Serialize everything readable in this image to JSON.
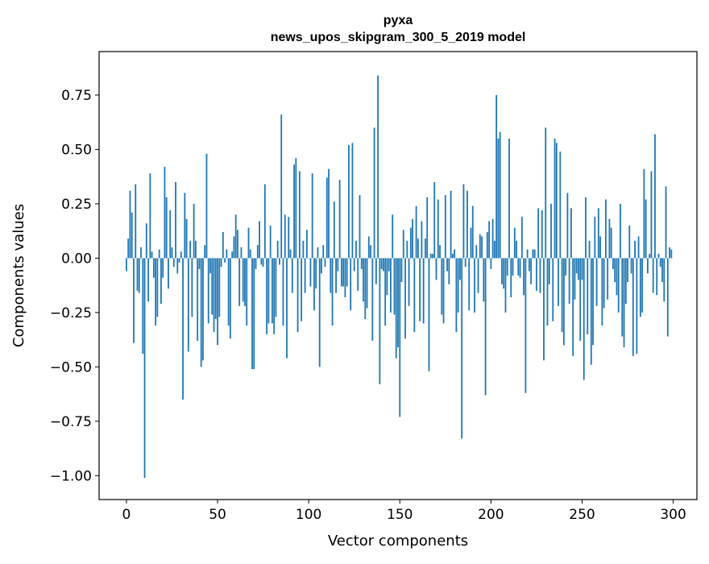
{
  "chart_data": {
    "type": "bar",
    "title": "pyxa",
    "subtitle": "news_upos_skipgram_300_5_2019 model",
    "xlabel": "Vector components",
    "ylabel": "Components values",
    "xlim": [
      -15,
      313
    ],
    "ylim": [
      -1.11,
      0.95
    ],
    "xticks": [
      0,
      50,
      100,
      150,
      200,
      250,
      300
    ],
    "xtick_labels": [
      "0",
      "50",
      "100",
      "150",
      "200",
      "250",
      "300"
    ],
    "yticks": [
      -1.0,
      -0.75,
      -0.5,
      -0.25,
      0.0,
      0.25,
      0.5,
      0.75
    ],
    "ytick_labels": [
      "−1.00",
      "−0.75",
      "−0.50",
      "−0.25",
      "0.00",
      "0.25",
      "0.50",
      "0.75"
    ],
    "grid": false,
    "color": "#1f77b4",
    "x_start": 0,
    "values": [
      -0.06,
      0.09,
      0.31,
      0.21,
      -0.39,
      0.34,
      -0.15,
      -0.16,
      0.05,
      -0.44,
      -1.01,
      0.16,
      -0.2,
      0.39,
      0.03,
      -0.09,
      -0.31,
      -0.27,
      0.04,
      -0.21,
      -0.09,
      0.42,
      0.28,
      -0.14,
      0.22,
      0.05,
      -0.04,
      0.35,
      -0.07,
      -0.02,
      0.03,
      -0.65,
      0.3,
      0.18,
      -0.43,
      0.08,
      -0.27,
      0.25,
      0.08,
      -0.38,
      -0.05,
      -0.5,
      -0.47,
      0.06,
      0.48,
      -0.3,
      -0.07,
      -0.26,
      -0.34,
      -0.28,
      -0.4,
      -0.27,
      -0.04,
      0.12,
      -0.02,
      0.04,
      -0.31,
      -0.37,
      0.03,
      0.1,
      0.2,
      0.13,
      -0.22,
      0.05,
      -0.2,
      -0.22,
      -0.31,
      0.14,
      0.04,
      -0.51,
      -0.51,
      -0.05,
      0.06,
      0.17,
      -0.03,
      -0.04,
      0.34,
      -0.35,
      -0.3,
      0.15,
      -0.3,
      -0.35,
      -0.27,
      0.08,
      -0.03,
      0.66,
      -0.31,
      0.2,
      -0.46,
      0.19,
      0.04,
      -0.16,
      0.43,
      0.46,
      -0.34,
      0.4,
      -0.29,
      0.08,
      -0.16,
      0.13,
      0.0,
      -0.13,
      0.39,
      -0.24,
      -0.14,
      0.05,
      -0.5,
      -0.07,
      0.06,
      -0.04,
      0.37,
      0.41,
      -0.16,
      -0.31,
      0.26,
      -0.16,
      -0.06,
      0.36,
      -0.13,
      -0.13,
      -0.18,
      -0.13,
      0.52,
      -0.24,
      0.53,
      -0.06,
      0.08,
      -0.15,
      0.29,
      -0.05,
      -0.2,
      -0.28,
      -0.23,
      0.1,
      0.06,
      -0.38,
      0.6,
      -0.12,
      0.84,
      -0.58,
      -0.05,
      -0.06,
      -0.31,
      -0.17,
      -0.06,
      -0.25,
      0.2,
      -0.26,
      -0.46,
      -0.41,
      -0.73,
      -0.11,
      0.13,
      -0.37,
      0.08,
      -0.22,
      0.14,
      0.18,
      -0.34,
      0.24,
      0.09,
      -0.29,
      0.17,
      -0.3,
      0.09,
      0.28,
      -0.52,
      0.02,
      0.02,
      0.35,
      -0.1,
      0.27,
      0.06,
      -0.26,
      -0.3,
      0.29,
      -0.06,
      -0.12,
      0.31,
      0.02,
      0.04,
      -0.34,
      -0.25,
      -0.1,
      -0.83,
      0.34,
      -0.04,
      0.31,
      -0.24,
      0.14,
      0.24,
      -0.25,
      0.06,
      -0.16,
      0.11,
      0.1,
      -0.2,
      -0.63,
      0.12,
      0.17,
      -0.05,
      0.18,
      0.08,
      0.75,
      0.55,
      0.58,
      -0.12,
      -0.14,
      -0.25,
      -0.08,
      0.55,
      -0.18,
      -0.08,
      0.14,
      0.08,
      -0.08,
      -0.09,
      0.19,
      -0.17,
      -0.62,
      0.04,
      -0.06,
      -0.12,
      0.04,
      0.04,
      -0.15,
      0.23,
      -0.16,
      0.22,
      -0.47,
      0.6,
      -0.31,
      -0.12,
      0.25,
      -0.29,
      0.55,
      0.53,
      -0.22,
      0.49,
      -0.34,
      -0.4,
      -0.08,
      0.3,
      -0.21,
      0.23,
      -0.45,
      -0.19,
      -0.07,
      -0.1,
      -0.38,
      -0.1,
      -0.56,
      0.28,
      -0.35,
      0.08,
      -0.49,
      -0.4,
      0.19,
      -0.22,
      0.23,
      0.1,
      -0.31,
      -0.23,
      0.27,
      -0.19,
      0.18,
      0.14,
      -0.05,
      -0.11,
      -0.17,
      -0.25,
      0.25,
      -0.36,
      -0.41,
      -0.21,
      -0.11,
      0.15,
      -0.07,
      -0.45,
      0.08,
      -0.44,
      0.1,
      -0.27,
      -0.25,
      0.41,
      0.27,
      -0.07,
      0.02,
      0.4,
      -0.16,
      0.57,
      -0.17,
      0.02,
      -0.04,
      -0.11,
      -0.2,
      0.33,
      -0.36,
      0.05,
      0.04
    ]
  }
}
